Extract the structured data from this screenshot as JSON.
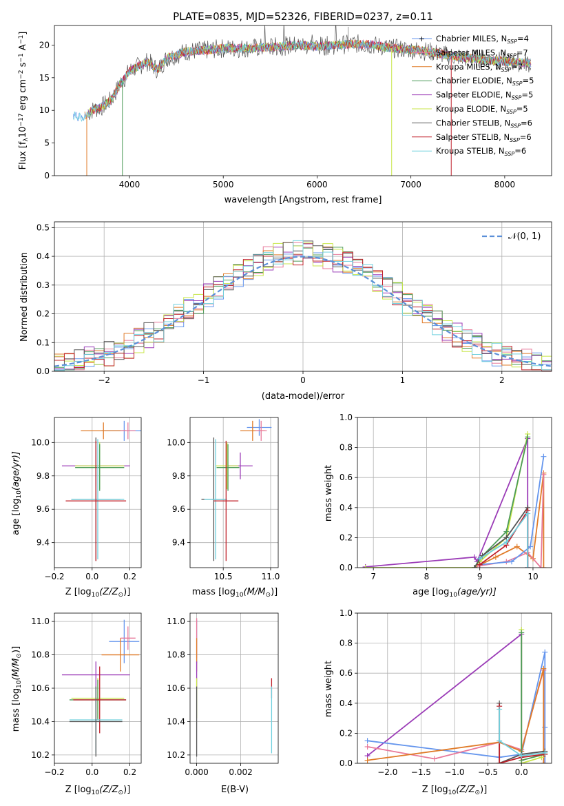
{
  "colors": {
    "chabrier_miles": "#6495ed",
    "salpeter_miles": "#e8799a",
    "kroupa_miles": "#e07b28",
    "chabrier_elodie": "#4d9b58",
    "salpeter_elodie": "#9b3cb7",
    "kroupa_elodie": "#c8e64a",
    "chabrier_stelib": "#555555",
    "salpeter_stelib": "#c0202a",
    "kroupa_stelib": "#6fd0de",
    "normal": "#5b8fd8"
  },
  "chart_data": [
    {
      "type": "line",
      "title": "PLATE=0835, MJD=52326, FIBERID=0237, z=0.11",
      "xlabel": "wavelength [Angstrom, rest frame]",
      "ylabel_main": "Flux [f",
      "ylabel_sub": "λ",
      "ylabel_rest": "10",
      "ylabel_exp": "−17",
      "ylabel_units": " erg cm",
      "ylabel_exp2": "−2",
      "ylabel_units2": " s",
      "ylabel_exp3": "−1",
      "ylabel_units3": " A",
      "ylabel_exp4": "−1",
      "ylabel_end": "]",
      "xlim": [
        3200,
        8500
      ],
      "ylim": [
        0,
        23
      ],
      "xticks": [
        "4000",
        "5000",
        "6000",
        "7000",
        "8000"
      ],
      "yticks": [
        "0",
        "5",
        "10",
        "15",
        "20"
      ],
      "continuum": {
        "x": [
          3400,
          3500,
          3600,
          3700,
          3800,
          3900,
          4000,
          4100,
          4200,
          4300,
          4400,
          4500,
          4600,
          4800,
          5000,
          5200,
          5400,
          5600,
          5800,
          6000,
          6200,
          6400,
          6600,
          6800,
          7000,
          7200,
          7400,
          7600,
          7800,
          8000,
          8200,
          8280
        ],
        "y": [
          9.2,
          8.8,
          10.0,
          10.5,
          11.5,
          14.0,
          16.0,
          16.8,
          17.5,
          16.2,
          18.0,
          18.5,
          19.0,
          19.2,
          19.5,
          19.5,
          19.6,
          19.8,
          20.0,
          19.8,
          20.0,
          20.2,
          20.0,
          19.5,
          19.3,
          19.0,
          18.4,
          18.0,
          17.8,
          17.5,
          17.3,
          17.2
        ]
      },
      "legend": [
        {
          "label": "Chabrier MILES, N",
          "sub": "SSP",
          "eq": "=4",
          "color": "#6495ed"
        },
        {
          "label": "Salpeter MILES, N",
          "sub": "SSP",
          "eq": "=7",
          "color": "#e8799a"
        },
        {
          "label": "Kroupa MILES, N",
          "sub": "SSP",
          "eq": "=7",
          "color": "#e07b28"
        },
        {
          "label": "Chabrier ELODIE, N",
          "sub": "SSP",
          "eq": "=5",
          "color": "#4d9b58"
        },
        {
          "label": "Salpeter ELODIE, N",
          "sub": "SSP",
          "eq": "=5",
          "color": "#9b3cb7"
        },
        {
          "label": "Kroupa ELODIE, N",
          "sub": "SSP",
          "eq": "=5",
          "color": "#c8e64a"
        },
        {
          "label": "Chabrier STELIB, N",
          "sub": "SSP",
          "eq": "=6",
          "color": "#555555"
        },
        {
          "label": "Salpeter STELIB, N",
          "sub": "SSP",
          "eq": "=6",
          "color": "#c0202a"
        },
        {
          "label": "Kroupa STELIB, N",
          "sub": "SSP",
          "eq": "=6",
          "color": "#6fd0de"
        }
      ]
    },
    {
      "type": "line",
      "xlabel": "(data-model)/error",
      "ylabel": "Normed distribution",
      "xlim": [
        -2.5,
        2.5
      ],
      "ylim": [
        0,
        0.52
      ],
      "xticks": [
        "−2",
        "−1",
        "0",
        "1",
        "2"
      ],
      "yticks": [
        "0.0",
        "0.1",
        "0.2",
        "0.3",
        "0.4",
        "0.5"
      ],
      "legend_label": "𝒩(0, 1)",
      "bin_width": 0.1,
      "bin_start": -2.5
    },
    {
      "type": "scatter",
      "xlabel": "Z [log",
      "xlabel_sub": "10",
      "xlabel_rest": "(Z/Z",
      "xlabel_sun": "⊙",
      "xlabel_end": ")]",
      "ylabel": "age  [log",
      "ylabel_sub": "10",
      "ylabel_rest": "(age/yr)]",
      "xlim": [
        -0.2,
        0.26
      ],
      "ylim": [
        9.25,
        10.15
      ],
      "xticks": [
        "−0.2",
        "0.0",
        "0.2"
      ],
      "yticks": [
        "9.4",
        "9.6",
        "9.8",
        "10.0"
      ],
      "points": [
        {
          "x": 0.17,
          "y": 10.07,
          "xerr": 0.12,
          "yerr": 0.06,
          "c": "#6495ed"
        },
        {
          "x": 0.06,
          "y": 10.07,
          "xerr": 0.12,
          "yerr": 0.05,
          "c": "#e07b28"
        },
        {
          "x": 0.19,
          "y": 10.07,
          "xerr": 0.04,
          "yerr": 0.05,
          "c": "#e8799a"
        },
        {
          "x": 0.02,
          "y": 9.86,
          "xerr": 0.18,
          "yerr": 0.12,
          "c": "#9b3cb7"
        },
        {
          "x": 0.04,
          "y": 9.86,
          "xerr": 0.13,
          "yerr": 0.14,
          "c": "#c8e64a"
        },
        {
          "x": 0.04,
          "y": 9.85,
          "xerr": 0.13,
          "yerr": 0.14,
          "c": "#4d9b58"
        },
        {
          "x": 0.02,
          "y": 9.66,
          "xerr": 0.13,
          "yerr": 0.37,
          "c": "#555555"
        },
        {
          "x": 0.03,
          "y": 9.66,
          "xerr": 0.14,
          "yerr": 0.36,
          "c": "#6fd0de"
        },
        {
          "x": 0.02,
          "y": 9.65,
          "xerr": 0.16,
          "yerr": 0.36,
          "c": "#c0202a"
        }
      ]
    },
    {
      "type": "scatter",
      "xlabel": "mass [log",
      "xlabel_sub": "10",
      "xlabel_rest": "(M/M",
      "xlabel_sun": "⊙",
      "xlabel_end": ")]",
      "xlim": [
        10.15,
        11.08
      ],
      "ylim": [
        9.25,
        10.15
      ],
      "xticks": [
        "10.5",
        "11.0"
      ],
      "yticks": [
        "9.4",
        "9.6",
        "9.8",
        "10.0"
      ],
      "points": [
        {
          "x": 10.88,
          "y": 10.09,
          "xerr": 0.13,
          "yerr": 0.05,
          "c": "#6495ed"
        },
        {
          "x": 10.81,
          "y": 10.07,
          "xerr": 0.13,
          "yerr": 0.06,
          "c": "#e07b28"
        },
        {
          "x": 10.9,
          "y": 10.07,
          "xerr": 0.06,
          "yerr": 0.06,
          "c": "#e8799a"
        },
        {
          "x": 10.68,
          "y": 9.86,
          "xerr": 0.13,
          "yerr": 0.08,
          "c": "#9b3cb7"
        },
        {
          "x": 10.54,
          "y": 9.86,
          "xerr": 0.12,
          "yerr": 0.14,
          "c": "#c8e64a"
        },
        {
          "x": 10.55,
          "y": 9.85,
          "xerr": 0.12,
          "yerr": 0.14,
          "c": "#4d9b58"
        },
        {
          "x": 10.4,
          "y": 9.66,
          "xerr": 0.13,
          "yerr": 0.37,
          "c": "#555555"
        },
        {
          "x": 10.42,
          "y": 9.66,
          "xerr": 0.12,
          "yerr": 0.36,
          "c": "#6fd0de"
        },
        {
          "x": 10.53,
          "y": 9.65,
          "xerr": 0.13,
          "yerr": 0.36,
          "c": "#c0202a"
        }
      ]
    },
    {
      "type": "line",
      "xlabel": "age  [log",
      "xlabel_sub": "10",
      "xlabel_rest": "(age/yr)]",
      "ylabel": "mass weight",
      "xlim": [
        6.7,
        10.35
      ],
      "ylim": [
        0,
        1.0
      ],
      "xticks": [
        "7",
        "8",
        "9",
        "10"
      ],
      "yticks": [
        "0.0",
        "0.2",
        "0.4",
        "0.6",
        "0.8",
        "1.0"
      ],
      "series": [
        {
          "c": "#9b3cb7",
          "x": [
            6.85,
            8.9,
            8.95,
            9.9,
            9.9
          ],
          "y": [
            0.005,
            0.07,
            0.04,
            0.86,
            0.0
          ]
        },
        {
          "c": "#e07b28",
          "x": [
            8.9,
            9.3,
            9.7,
            10.0,
            10.2,
            10.2
          ],
          "y": [
            0.0,
            0.07,
            0.14,
            0.06,
            0.63,
            0.0
          ]
        },
        {
          "c": "#e8799a",
          "x": [
            8.95,
            9.5,
            9.9,
            10.15,
            10.2
          ],
          "y": [
            0.01,
            0.04,
            0.1,
            0.0,
            0.62
          ]
        },
        {
          "c": "#6495ed",
          "x": [
            9.0,
            9.6,
            9.95,
            10.2
          ],
          "y": [
            0.02,
            0.04,
            0.14,
            0.74
          ]
        },
        {
          "c": "#c8e64a",
          "x": [
            6.85,
            8.9,
            9.0,
            9.5,
            9.9
          ],
          "y": [
            0.0,
            0.0,
            0.04,
            0.2,
            0.89
          ]
        },
        {
          "c": "#4d9b58",
          "x": [
            8.9,
            9.0,
            9.5,
            9.9
          ],
          "y": [
            0.0,
            0.06,
            0.24,
            0.87
          ]
        },
        {
          "c": "#555555",
          "x": [
            8.9,
            9.05,
            9.5,
            9.9,
            9.9
          ],
          "y": [
            0.0,
            0.08,
            0.2,
            0.4,
            0.0
          ]
        },
        {
          "c": "#c0202a",
          "x": [
            9.0,
            9.5,
            9.9,
            9.9
          ],
          "y": [
            0.02,
            0.15,
            0.38,
            0.0
          ]
        },
        {
          "c": "#6fd0de",
          "x": [
            9.0,
            9.5,
            9.9,
            9.9
          ],
          "y": [
            0.06,
            0.17,
            0.36,
            0.0
          ]
        }
      ]
    },
    {
      "type": "scatter",
      "xlabel": "Z [log",
      "xlabel_sub": "10",
      "xlabel_rest": "(Z/Z",
      "xlabel_sun": "⊙",
      "xlabel_end": ")]",
      "ylabel": "mass [log",
      "ylabel_sub": "10",
      "ylabel_rest": "(M/M",
      "ylabel_sun": "⊙",
      "ylabel_end": ")]",
      "xlim": [
        -0.2,
        0.26
      ],
      "ylim": [
        10.15,
        11.05
      ],
      "xticks": [
        "−0.2",
        "0.0",
        "0.2"
      ],
      "yticks": [
        "10.2",
        "10.4",
        "10.6",
        "10.8",
        "11.0"
      ],
      "points": [
        {
          "x": 0.17,
          "y": 10.88,
          "xerr": 0.08,
          "yerr": 0.13,
          "c": "#6495ed"
        },
        {
          "x": 0.19,
          "y": 10.9,
          "xerr": 0.04,
          "yerr": 0.07,
          "c": "#e8799a"
        },
        {
          "x": 0.15,
          "y": 10.8,
          "xerr": 0.1,
          "yerr": 0.1,
          "c": "#e07b28"
        },
        {
          "x": 0.02,
          "y": 10.68,
          "xerr": 0.18,
          "yerr": 0.08,
          "c": "#9b3cb7"
        },
        {
          "x": 0.03,
          "y": 10.54,
          "xerr": 0.14,
          "yerr": 0.12,
          "c": "#c8e64a"
        },
        {
          "x": 0.03,
          "y": 10.53,
          "xerr": 0.15,
          "yerr": 0.12,
          "c": "#4d9b58"
        },
        {
          "x": 0.04,
          "y": 10.53,
          "xerr": 0.14,
          "yerr": 0.2,
          "c": "#c0202a"
        },
        {
          "x": 0.02,
          "y": 10.41,
          "xerr": 0.14,
          "yerr": 0.2,
          "c": "#6fd0de"
        },
        {
          "x": 0.02,
          "y": 10.4,
          "xerr": 0.14,
          "yerr": 0.21,
          "c": "#555555"
        }
      ]
    },
    {
      "type": "scatter",
      "xlabel": "E(B-V)",
      "xlim": [
        -0.0003,
        0.0037
      ],
      "ylim": [
        10.15,
        11.05
      ],
      "xticks": [
        "0.000",
        "0.002"
      ],
      "yticks": [
        "10.2",
        "10.4",
        "10.6",
        "10.8",
        "11.0"
      ],
      "points": [
        {
          "x": 0.0,
          "y": 10.88,
          "yerr": 0.13,
          "c": "#6495ed"
        },
        {
          "x": 0.0,
          "y": 10.9,
          "yerr": 0.12,
          "c": "#e8799a"
        },
        {
          "x": 0.0,
          "y": 10.8,
          "yerr": 0.1,
          "c": "#e07b28"
        },
        {
          "x": 0.0,
          "y": 10.68,
          "yerr": 0.08,
          "c": "#9b3cb7"
        },
        {
          "x": 0.0,
          "y": 10.54,
          "yerr": 0.12,
          "c": "#c8e64a"
        },
        {
          "x": 0.0,
          "y": 10.4,
          "yerr": 0.21,
          "c": "#555555"
        },
        {
          "x": 0.0034,
          "y": 10.6,
          "yerr": 0.06,
          "c": "#c0202a"
        },
        {
          "x": 0.0034,
          "y": 10.41,
          "yerr": 0.2,
          "c": "#6fd0de"
        }
      ]
    },
    {
      "type": "line",
      "xlabel": "Z [log",
      "xlabel_sub": "10",
      "xlabel_rest": "(Z/Z",
      "xlabel_sun": "⊙",
      "xlabel_end": ")]",
      "ylabel": "mass weight",
      "xlim": [
        -2.45,
        0.45
      ],
      "ylim": [
        0,
        1.0
      ],
      "xticks": [
        "−2.0",
        "−1.5",
        "−1.0",
        "−0.5",
        "0.0"
      ],
      "yticks": [
        "0.0",
        "0.2",
        "0.4",
        "0.6",
        "0.8",
        "1.0"
      ],
      "series": [
        {
          "c": "#9b3cb7",
          "x": [
            -2.3,
            0.0,
            0.0
          ],
          "y": [
            0.05,
            0.86,
            0.0
          ]
        },
        {
          "c": "#6495ed",
          "x": [
            -2.3,
            -0.33,
            0.0,
            0.35,
            0.35,
            0.35
          ],
          "y": [
            0.15,
            0.04,
            0.06,
            0.74,
            0.24,
            0.0
          ]
        },
        {
          "c": "#e8799a",
          "x": [
            -2.3,
            -1.3,
            -0.33,
            0.0,
            0.33,
            0.33
          ],
          "y": [
            0.11,
            0.03,
            0.14,
            0.09,
            0.62,
            0.0
          ]
        },
        {
          "c": "#e07b28",
          "x": [
            -2.3,
            -0.33,
            0.0,
            0.33,
            0.33,
            0.33
          ],
          "y": [
            0.02,
            0.14,
            0.08,
            0.63,
            0.06,
            0.0
          ]
        },
        {
          "c": "#c8e64a",
          "x": [
            0.0,
            0.0,
            0.3
          ],
          "y": [
            0.89,
            0.0,
            0.04
          ]
        },
        {
          "c": "#4d9b58",
          "x": [
            0.0,
            0.0,
            0.35
          ],
          "y": [
            0.87,
            0.02,
            0.06
          ]
        },
        {
          "c": "#555555",
          "x": [
            -0.33,
            -0.33,
            0.0,
            0.35
          ],
          "y": [
            0.4,
            0.0,
            0.06,
            0.08
          ]
        },
        {
          "c": "#c0202a",
          "x": [
            -0.33,
            -0.33,
            0.0,
            0.35
          ],
          "y": [
            0.38,
            0.0,
            0.04,
            0.06
          ]
        },
        {
          "c": "#6fd0de",
          "x": [
            -0.33,
            -0.33,
            0.0,
            0.35
          ],
          "y": [
            0.36,
            0.15,
            0.05,
            0.07
          ]
        }
      ]
    }
  ]
}
